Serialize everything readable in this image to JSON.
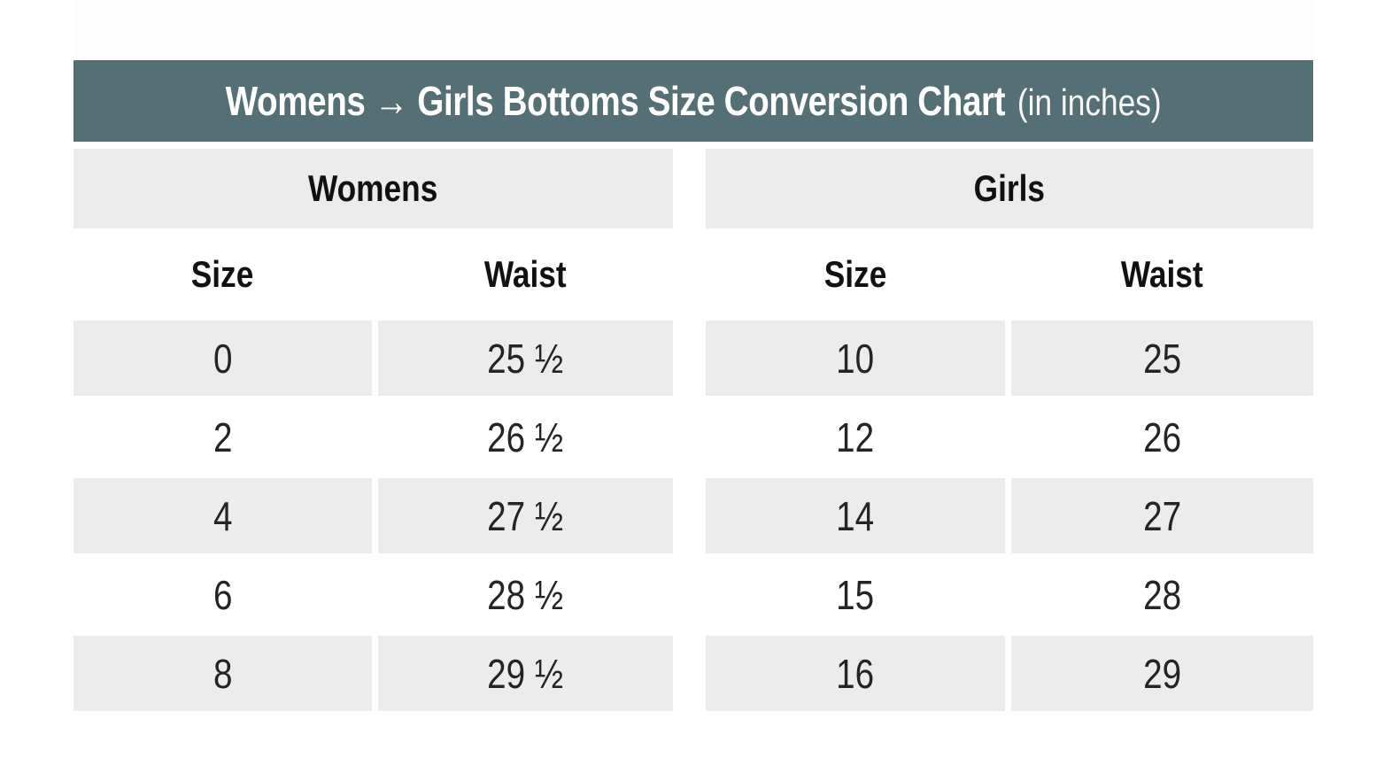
{
  "title": {
    "main": "Womens → Girls Bottoms Size Conversion Chart",
    "suffix": "(in inches)"
  },
  "colors": {
    "title_bar_bg": "#566f75",
    "title_text": "#ffffff",
    "row_shade": "#ececec",
    "body_text": "#1d1d1d"
  },
  "table": {
    "sections": [
      {
        "label": "Womens",
        "col_headers": [
          "Size",
          "Waist"
        ],
        "rows": [
          [
            "0",
            "25 ½"
          ],
          [
            "2",
            "26 ½"
          ],
          [
            "4",
            "27 ½"
          ],
          [
            "6",
            "28 ½"
          ],
          [
            "8",
            "29 ½"
          ]
        ]
      },
      {
        "label": "Girls",
        "col_headers": [
          "Size",
          "Waist"
        ],
        "rows": [
          [
            "10",
            "25"
          ],
          [
            "12",
            "26"
          ],
          [
            "14",
            "27"
          ],
          [
            "15",
            "28"
          ],
          [
            "16",
            "29"
          ]
        ]
      }
    ]
  },
  "chart_data": {
    "type": "table",
    "title": "Womens → Girls Bottoms Size Conversion Chart (in inches)",
    "units": "inches",
    "groups": [
      {
        "name": "Womens",
        "columns": [
          "Size",
          "Waist"
        ],
        "rows": [
          [
            0,
            25.5
          ],
          [
            2,
            26.5
          ],
          [
            4,
            27.5
          ],
          [
            6,
            28.5
          ],
          [
            8,
            29.5
          ]
        ]
      },
      {
        "name": "Girls",
        "columns": [
          "Size",
          "Waist"
        ],
        "rows": [
          [
            10,
            25
          ],
          [
            12,
            26
          ],
          [
            14,
            27
          ],
          [
            15,
            28
          ],
          [
            16,
            29
          ]
        ]
      }
    ],
    "layout": {
      "row_shading": "alternating",
      "shaded_rows": [
        0,
        2,
        4
      ]
    }
  }
}
